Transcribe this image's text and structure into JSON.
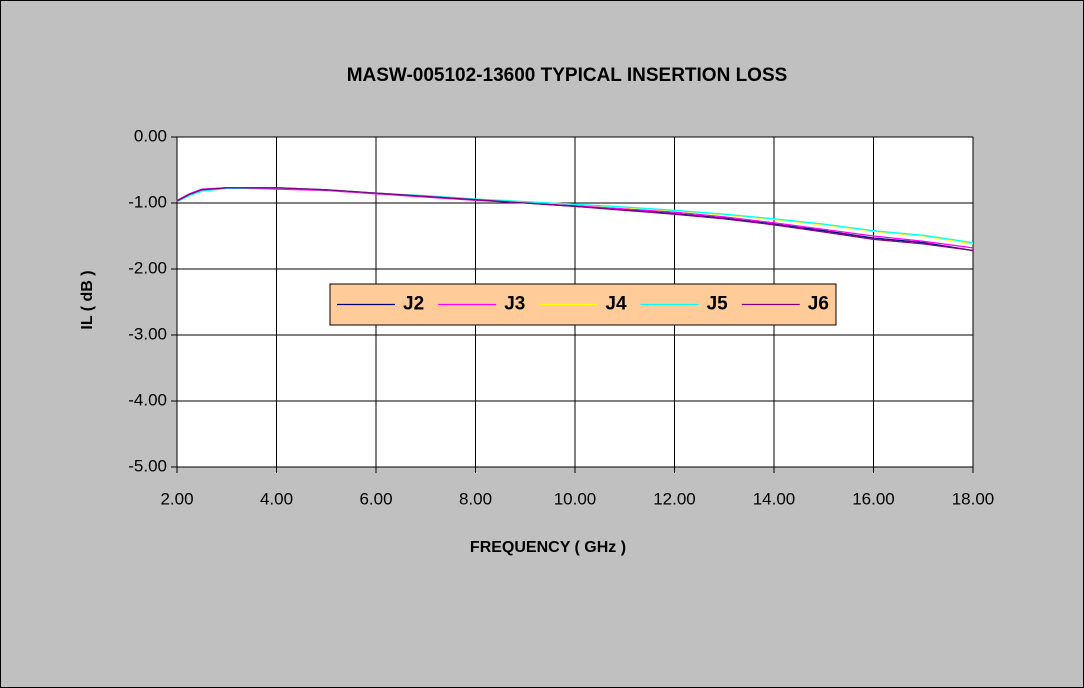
{
  "chart_data": {
    "type": "line",
    "title": "MASW-005102-13600 TYPICAL INSERTION LOSS",
    "xlabel": "FREQUENCY ( GHz )",
    "ylabel": "IL ( dB )",
    "x": [
      2,
      2.25,
      2.5,
      3,
      4,
      5,
      6,
      7,
      8,
      9,
      10,
      11,
      12,
      13,
      14,
      15,
      16,
      17,
      18
    ],
    "series": [
      {
        "name": "J2",
        "color": "#000080",
        "values": [
          -0.97,
          -0.87,
          -0.8,
          -0.77,
          -0.77,
          -0.8,
          -0.85,
          -0.9,
          -0.95,
          -1.0,
          -1.05,
          -1.1,
          -1.16,
          -1.23,
          -1.32,
          -1.42,
          -1.53,
          -1.6,
          -1.72
        ]
      },
      {
        "name": "J3",
        "color": "#ff00ff",
        "values": [
          -0.96,
          -0.86,
          -0.79,
          -0.77,
          -0.79,
          -0.81,
          -0.86,
          -0.91,
          -0.96,
          -1.0,
          -1.04,
          -1.09,
          -1.14,
          -1.21,
          -1.3,
          -1.4,
          -1.5,
          -1.58,
          -1.68
        ]
      },
      {
        "name": "J4",
        "color": "#ffff00",
        "values": [
          -0.97,
          -0.88,
          -0.81,
          -0.77,
          -0.77,
          -0.8,
          -0.85,
          -0.89,
          -0.94,
          -0.98,
          -1.02,
          -1.07,
          -1.12,
          -1.18,
          -1.25,
          -1.33,
          -1.43,
          -1.5,
          -1.62
        ]
      },
      {
        "name": "J5",
        "color": "#00ffff",
        "values": [
          -0.98,
          -0.89,
          -0.82,
          -0.78,
          -0.77,
          -0.8,
          -0.85,
          -0.89,
          -0.94,
          -0.98,
          -1.02,
          -1.06,
          -1.11,
          -1.17,
          -1.24,
          -1.32,
          -1.42,
          -1.49,
          -1.6
        ]
      },
      {
        "name": "J6",
        "color": "#800080",
        "values": [
          -0.97,
          -0.87,
          -0.8,
          -0.77,
          -0.77,
          -0.8,
          -0.85,
          -0.9,
          -0.95,
          -1.0,
          -1.05,
          -1.11,
          -1.17,
          -1.24,
          -1.33,
          -1.44,
          -1.55,
          -1.62,
          -1.72
        ]
      }
    ],
    "xlim": [
      2,
      18
    ],
    "xticks": [
      {
        "value": 2,
        "label": "2.00"
      },
      {
        "value": 4,
        "label": "4.00"
      },
      {
        "value": 6,
        "label": "6.00"
      },
      {
        "value": 8,
        "label": "8.00"
      },
      {
        "value": 10,
        "label": "10.00"
      },
      {
        "value": 12,
        "label": "12.00"
      },
      {
        "value": 14,
        "label": "14.00"
      },
      {
        "value": 16,
        "label": "16.00"
      },
      {
        "value": 18,
        "label": "18.00"
      }
    ],
    "ylim": [
      -5,
      0
    ],
    "yticks": [
      {
        "value": 0,
        "label": "0.00"
      },
      {
        "value": -1,
        "label": "-1.00"
      },
      {
        "value": -2,
        "label": "-2.00"
      },
      {
        "value": -3,
        "label": "-3.00"
      },
      {
        "value": -4,
        "label": "-4.00"
      },
      {
        "value": -5,
        "label": "-5.00"
      }
    ],
    "grid": true,
    "legend": "center"
  }
}
